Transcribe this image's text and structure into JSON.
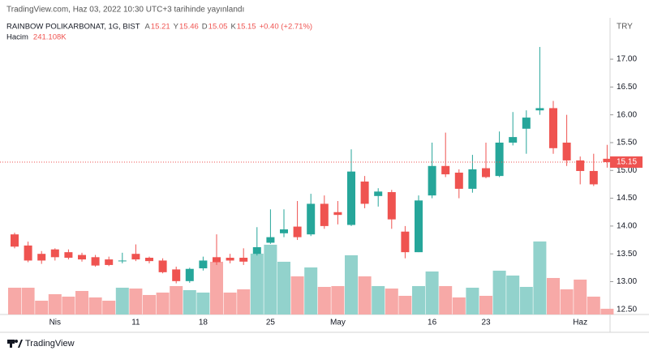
{
  "header": {
    "published": "TradingView.com, Haz 03, 2022 10:30 UTC+3 tarihinde yayınlandı",
    "currency": "TRY",
    "footer": "TradingView"
  },
  "legend": {
    "ohlc_letters": [
      "A",
      "Y",
      "D",
      "K"
    ],
    "change": "+0.40 (+2.71%)",
    "volume_title": "Hacim",
    "volume_value": "241.108K"
  },
  "chart_data": {
    "type": "candlestick",
    "title": "RAINBOW POLIKARBONAT, 1G, BIST",
    "categories": [
      null,
      null,
      null,
      "Nis",
      null,
      null,
      null,
      null,
      null,
      "11",
      null,
      null,
      null,
      null,
      "18",
      null,
      null,
      null,
      null,
      "25",
      null,
      null,
      null,
      null,
      "May",
      null,
      null,
      null,
      null,
      null,
      null,
      "16",
      null,
      null,
      null,
      "23",
      null,
      null,
      null,
      null,
      null,
      null,
      "Haz",
      null,
      null
    ],
    "open": [
      13.85,
      13.65,
      13.5,
      13.58,
      13.53,
      13.48,
      13.44,
      13.4,
      13.37,
      13.5,
      13.43,
      13.38,
      13.22,
      13.01,
      13.24,
      13.44,
      13.43,
      13.43,
      13.5,
      13.7,
      13.87,
      13.99,
      13.85,
      14.4,
      14.25,
      14.02,
      14.8,
      14.54,
      14.61,
      13.9,
      13.53,
      14.55,
      15.08,
      14.96,
      14.67,
      15.04,
      14.9,
      15.5,
      15.75,
      16.08,
      16.12,
      15.5,
      15.18,
      14.99,
      15.21
    ],
    "high": [
      13.88,
      13.72,
      13.55,
      13.6,
      13.58,
      13.52,
      13.48,
      13.45,
      13.52,
      13.67,
      13.45,
      13.42,
      13.27,
      13.25,
      13.45,
      13.85,
      13.5,
      13.6,
      13.98,
      14.3,
      14.3,
      14.45,
      14.58,
      14.55,
      14.45,
      15.38,
      14.9,
      14.68,
      14.65,
      14.0,
      14.55,
      15.5,
      15.68,
      15.02,
      15.28,
      15.5,
      15.7,
      16.05,
      16.08,
      17.22,
      16.25,
      16.0,
      15.25,
      15.3,
      15.46
    ],
    "low": [
      13.6,
      13.35,
      13.32,
      13.38,
      13.4,
      13.36,
      13.27,
      13.28,
      13.33,
      13.37,
      13.33,
      13.15,
      12.97,
      12.98,
      13.2,
      13.3,
      13.33,
      13.3,
      13.47,
      13.68,
      13.8,
      13.75,
      13.82,
      13.95,
      14.03,
      14.0,
      14.32,
      14.35,
      13.95,
      13.42,
      13.53,
      14.5,
      14.88,
      14.5,
      14.6,
      14.86,
      14.88,
      15.45,
      15.3,
      16.0,
      15.3,
      15.08,
      14.75,
      14.72,
      15.05
    ],
    "close": [
      13.63,
      13.38,
      13.38,
      13.44,
      13.43,
      13.4,
      13.29,
      13.3,
      13.38,
      13.4,
      13.37,
      13.17,
      13.01,
      13.23,
      13.38,
      13.35,
      13.38,
      13.36,
      13.62,
      13.8,
      13.94,
      13.8,
      14.4,
      14.0,
      14.2,
      14.98,
      14.4,
      14.62,
      14.12,
      13.53,
      14.46,
      15.08,
      14.93,
      14.67,
      15.02,
      14.88,
      15.5,
      15.6,
      15.95,
      16.12,
      15.4,
      15.18,
      14.99,
      14.75,
      15.15
    ],
    "volume": [
      1128000,
      1128000,
      581000,
      855000,
      752000,
      991000,
      718000,
      581000,
      1128000,
      1094000,
      821000,
      923000,
      1197000,
      1026000,
      923000,
      2222000,
      923000,
      1060000,
      2564000,
      2940000,
      2222000,
      1607000,
      1983000,
      1162000,
      1197000,
      2496000,
      1607000,
      1197000,
      1094000,
      786000,
      1197000,
      1812000,
      1197000,
      718000,
      1128000,
      786000,
      1846000,
      1641000,
      1162000,
      3077000,
      1538000,
      1060000,
      1470000,
      752000,
      241108
    ],
    "up_color": "#26a69a",
    "down_color": "#ef5350",
    "volume_up_color": "#92d2cc",
    "volume_down_color": "#f7a9a7",
    "ylim": [
      12.41,
      17.7
    ],
    "yticks": [
      {
        "value": 12.5,
        "label": "12.50"
      },
      {
        "value": 13,
        "label": "13.00"
      },
      {
        "value": 13.5,
        "label": "13.50"
      },
      {
        "value": 14,
        "label": "14.00"
      },
      {
        "value": 14.5,
        "label": "14.50"
      },
      {
        "value": 15,
        "label": "15.00"
      },
      {
        "value": 15.5,
        "label": "15.50"
      },
      {
        "value": 16,
        "label": "16.00"
      },
      {
        "value": 16.5,
        "label": "16.50"
      },
      {
        "value": 17,
        "label": "17.00"
      }
    ],
    "y2lim": [
      0,
      12400000
    ],
    "grid": false
  }
}
